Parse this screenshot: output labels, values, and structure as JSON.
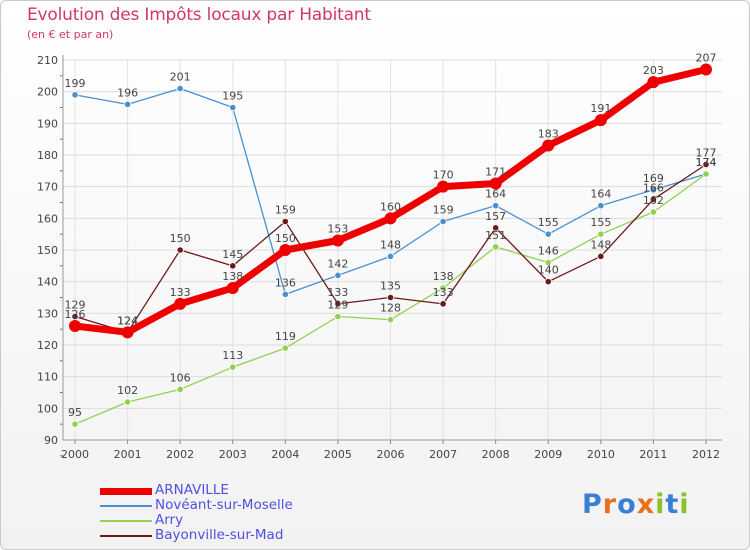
{
  "header": {
    "title": "Evolution des Impôts locaux par Habitant",
    "subtitle": "(en € et par an)"
  },
  "brand": {
    "letters": [
      "P",
      "r",
      "o",
      "x",
      "i",
      "t",
      "i"
    ],
    "colors": [
      "#3a7fd6",
      "#e8701d",
      "#3a7fd6",
      "#e8701d",
      "#8fbf2a",
      "#3a7fd6",
      "#8fbf2a"
    ]
  },
  "chart_data": {
    "type": "line",
    "title": "Evolution des Impôts locaux par Habitant",
    "subtitle": "(en € et par an)",
    "xlabel": "",
    "ylabel": "",
    "categories": [
      "2000",
      "2001",
      "2002",
      "2003",
      "2004",
      "2005",
      "2006",
      "2007",
      "2008",
      "2009",
      "2010",
      "2011",
      "2012"
    ],
    "ylim": [
      90,
      210
    ],
    "yticks": [
      90,
      100,
      110,
      120,
      130,
      140,
      150,
      160,
      170,
      180,
      190,
      200,
      210
    ],
    "grid": true,
    "legend_position": "bottom-left",
    "series": [
      {
        "name": "ARNAVILLE",
        "color": "#ee0000",
        "emphasis": true,
        "values": [
          126,
          124,
          133,
          138,
          150,
          153,
          160,
          170,
          171,
          183,
          191,
          203,
          207
        ]
      },
      {
        "name": "Novéant-sur-Moselle",
        "color": "#4a90d0",
        "emphasis": false,
        "values": [
          199,
          196,
          201,
          195,
          136,
          142,
          148,
          159,
          164,
          155,
          164,
          169,
          174
        ]
      },
      {
        "name": "Arry",
        "color": "#92d050",
        "emphasis": false,
        "values": [
          95,
          102,
          106,
          113,
          119,
          129,
          128,
          138,
          151,
          146,
          155,
          162,
          174
        ]
      },
      {
        "name": "Bayonville-sur-Mad",
        "color": "#6b1a1a",
        "emphasis": false,
        "values": [
          129,
          124,
          150,
          145,
          159,
          133,
          135,
          133,
          157,
          140,
          148,
          166,
          177
        ]
      }
    ]
  }
}
